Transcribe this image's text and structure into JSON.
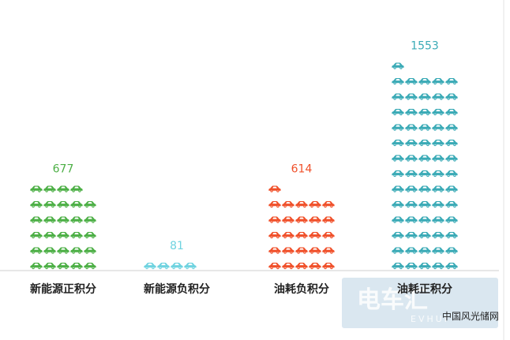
{
  "chart_data": {
    "type": "bar",
    "categories": [
      "新能源正积分",
      "新能源负积分",
      "油耗负积分",
      "油耗正积分"
    ],
    "values": [
      677,
      81,
      614,
      1553
    ],
    "units_shown": [
      29,
      4,
      26,
      66
    ],
    "colors": [
      "#4caf45",
      "#6fd3e0",
      "#f0502a",
      "#3aaab6"
    ],
    "title": "",
    "xlabel": "",
    "ylabel": "",
    "grid": false,
    "legend": "none"
  },
  "watermark": {
    "text": "电车汇",
    "sub": "EVHUI"
  },
  "credit": "中国风光储网",
  "icon_name": "car-icon"
}
